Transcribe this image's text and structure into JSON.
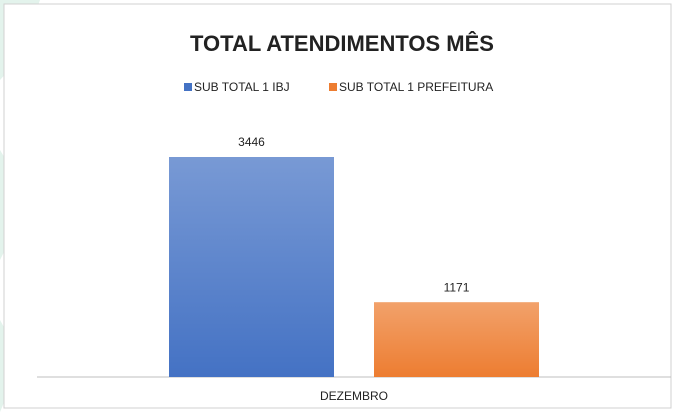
{
  "chart_data": {
    "type": "bar",
    "title": "TOTAL ATENDIMENTOS MÊS",
    "categories": [
      "DEZEMBRO"
    ],
    "series": [
      {
        "name": "SUB TOTAL 1 IBJ",
        "color": "#4472c4",
        "values": [
          3446
        ]
      },
      {
        "name": "SUB TOTAL 1 PREFEITURA",
        "color": "#ed7d31",
        "values": [
          1171
        ]
      }
    ],
    "data_labels": true,
    "legend": "top"
  }
}
